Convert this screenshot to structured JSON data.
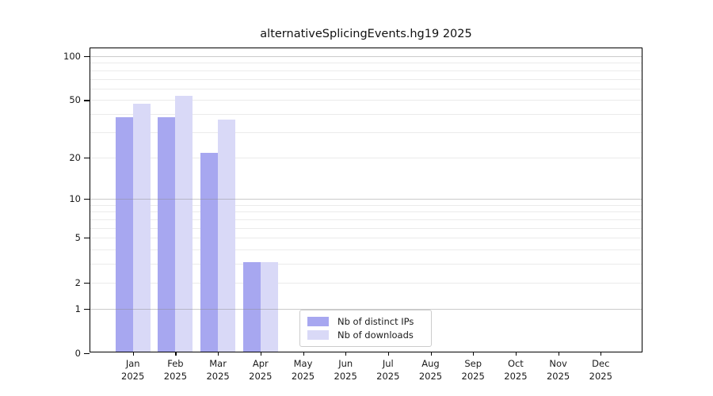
{
  "title": "alternativeSplicingEvents.hg19 2025",
  "colors": {
    "ips_bar": "#a7a7f0",
    "downloads_bar": "#d9d9f7",
    "grid_minor": "#ebebeb",
    "grid_major": "#c8c8c8",
    "axis": "#000000",
    "background": "#ffffff"
  },
  "legend": {
    "entries": [
      {
        "label": "Nb of distinct IPs",
        "series": "ips"
      },
      {
        "label": "Nb of downloads",
        "series": "downloads"
      }
    ]
  },
  "chart_data": {
    "type": "bar",
    "title": "alternativeSplicingEvents.hg19 2025",
    "categories": [
      "Jan",
      "Feb",
      "Mar",
      "Apr",
      "May",
      "Jun",
      "Jul",
      "Aug",
      "Sep",
      "Oct",
      "Nov",
      "Dec"
    ],
    "category_year": "2025",
    "series": [
      {
        "name": "Nb of distinct IPs",
        "color": "#a7a7f0",
        "values": [
          37,
          37,
          21,
          3,
          0,
          0,
          0,
          0,
          0,
          0,
          0,
          0
        ]
      },
      {
        "name": "Nb of downloads",
        "color": "#d9d9f7",
        "values": [
          46,
          52,
          36,
          3,
          0,
          0,
          0,
          0,
          0,
          0,
          0,
          0
        ]
      }
    ],
    "yscale": "log1p",
    "ylim": [
      0,
      113
    ],
    "yticks": [
      0,
      1,
      2,
      5,
      10,
      20,
      50,
      100
    ],
    "grid_minor": [
      2,
      3,
      4,
      5,
      6,
      7,
      8,
      9,
      20,
      30,
      40,
      50,
      60,
      70,
      80,
      90
    ],
    "grid_major": [
      1,
      10,
      100
    ],
    "legend_position": "bottom-center-inside",
    "grid": true
  }
}
